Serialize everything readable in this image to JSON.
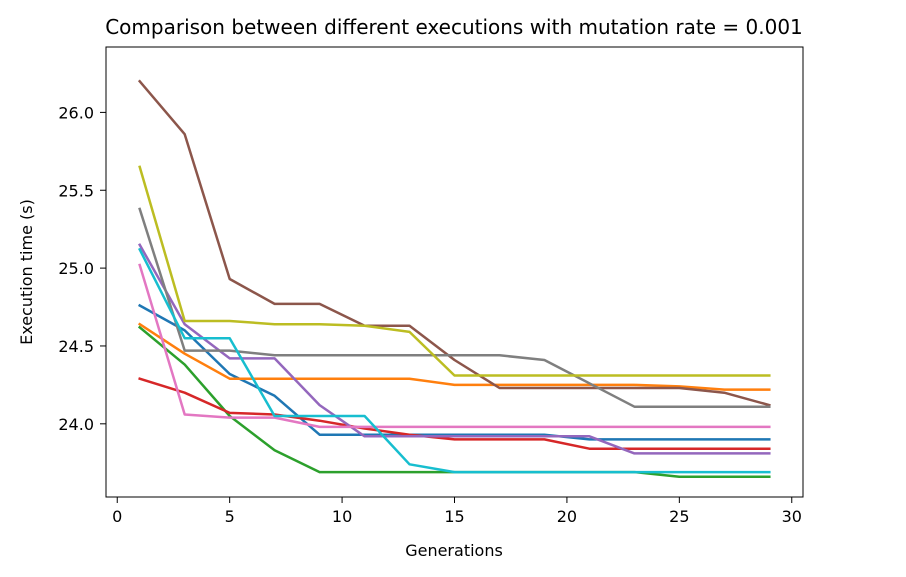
{
  "chart_data": {
    "type": "line",
    "title": "Comparison between different executions with mutation rate = 0.001",
    "xlabel": "Generations",
    "ylabel": "Execution time (s)",
    "xlim": [
      -0.5,
      30.5
    ],
    "ylim": [
      23.53,
      26.42
    ],
    "xticks": [
      0,
      5,
      10,
      15,
      20,
      25,
      30
    ],
    "yticks": [
      24.0,
      24.5,
      25.0,
      25.5,
      26.0
    ],
    "xtick_labels": [
      "0",
      "5",
      "10",
      "15",
      "20",
      "25",
      "30"
    ],
    "ytick_labels": [
      "24.0",
      "24.5",
      "25.0",
      "25.5",
      "26.0"
    ],
    "grid": false,
    "legend": "none",
    "x": [
      1,
      3,
      5,
      7,
      9,
      11,
      13,
      15,
      17,
      19,
      21,
      23,
      25,
      27,
      29
    ],
    "series": [
      {
        "color": "#1f77b4",
        "values": [
          24.76,
          24.6,
          24.32,
          24.18,
          23.93,
          23.93,
          23.93,
          23.93,
          23.93,
          23.93,
          23.9,
          23.9,
          23.9,
          23.9,
          23.9
        ]
      },
      {
        "color": "#ff7f0e",
        "values": [
          24.64,
          24.45,
          24.29,
          24.29,
          24.29,
          24.29,
          24.29,
          24.25,
          24.25,
          24.25,
          24.25,
          24.25,
          24.24,
          24.22,
          24.22
        ]
      },
      {
        "color": "#2ca02c",
        "values": [
          24.62,
          24.38,
          24.05,
          23.83,
          23.69,
          23.69,
          23.69,
          23.69,
          23.69,
          23.69,
          23.69,
          23.69,
          23.66,
          23.66,
          23.66
        ]
      },
      {
        "color": "#d62728",
        "values": [
          24.29,
          24.2,
          24.07,
          24.06,
          24.02,
          23.97,
          23.93,
          23.9,
          23.9,
          23.9,
          23.84,
          23.84,
          23.84,
          23.84,
          23.84
        ]
      },
      {
        "color": "#9467bd",
        "values": [
          25.15,
          24.64,
          24.42,
          24.42,
          24.12,
          23.92,
          23.92,
          23.92,
          23.92,
          23.92,
          23.92,
          23.81,
          23.81,
          23.81,
          23.81
        ]
      },
      {
        "color": "#8c564b",
        "values": [
          26.2,
          25.86,
          24.93,
          24.77,
          24.77,
          24.63,
          24.63,
          24.41,
          24.23,
          24.23,
          24.23,
          24.23,
          24.23,
          24.2,
          24.12
        ]
      },
      {
        "color": "#e377c2",
        "values": [
          25.02,
          24.06,
          24.04,
          24.04,
          23.98,
          23.98,
          23.98,
          23.98,
          23.98,
          23.98,
          23.98,
          23.98,
          23.98,
          23.98,
          23.98
        ]
      },
      {
        "color": "#7f7f7f",
        "values": [
          25.38,
          24.47,
          24.47,
          24.44,
          24.44,
          24.44,
          24.44,
          24.44,
          24.44,
          24.41,
          24.26,
          24.11,
          24.11,
          24.11,
          24.11
        ]
      },
      {
        "color": "#bcbd22",
        "values": [
          25.65,
          24.66,
          24.66,
          24.64,
          24.64,
          24.63,
          24.59,
          24.31,
          24.31,
          24.31,
          24.31,
          24.31,
          24.31,
          24.31,
          24.31
        ]
      },
      {
        "color": "#17becf",
        "values": [
          25.12,
          24.55,
          24.55,
          24.05,
          24.05,
          24.05,
          23.74,
          23.69,
          23.69,
          23.69,
          23.69,
          23.69,
          23.69,
          23.69,
          23.69
        ]
      }
    ]
  }
}
